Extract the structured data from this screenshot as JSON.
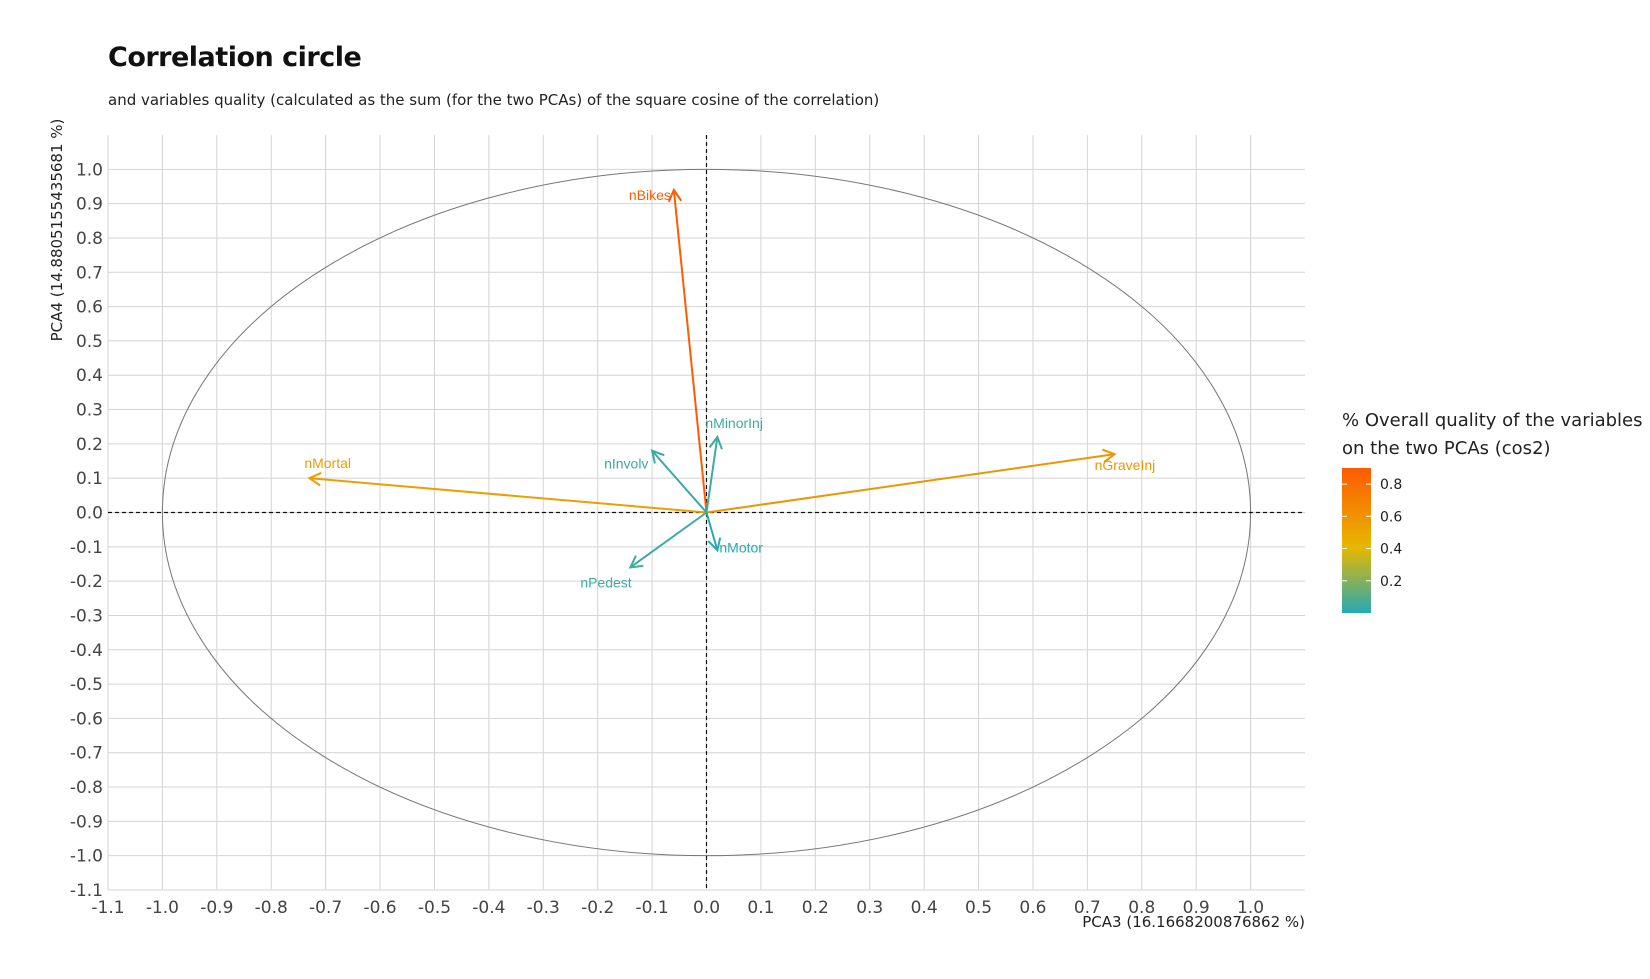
{
  "chart_data": {
    "type": "scatter",
    "subtype": "correlation-circle",
    "title": "Correlation circle",
    "subtitle": "and variables quality (calculated as the sum (for the two PCAs) of the square cosine of the correlation)",
    "xlabel": "PCA3 (16.1668200876862 %)",
    "ylabel": "PCA4 (14.8805155435681 %)",
    "xlim": [
      -1.1,
      1.1
    ],
    "ylim": [
      -1.1,
      1.1
    ],
    "x_ticks": [
      "-1.1",
      "-1.0",
      "-0.9",
      "-0.8",
      "-0.7",
      "-0.6",
      "-0.5",
      "-0.4",
      "-0.3",
      "-0.2",
      "-0.1",
      "0.0",
      "0.1",
      "0.2",
      "0.3",
      "0.4",
      "0.5",
      "0.6",
      "0.7",
      "0.8",
      "0.9",
      "1.0"
    ],
    "y_ticks": [
      "1.0",
      "0.9",
      "0.8",
      "0.7",
      "0.6",
      "0.5",
      "0.4",
      "0.3",
      "0.2",
      "0.1",
      "0.0",
      "-0.1",
      "-0.2",
      "-0.3",
      "-0.4",
      "-0.5",
      "-0.6",
      "-0.7",
      "-0.8",
      "-0.9",
      "-1.0",
      "-1.1"
    ],
    "grid": true,
    "unit_circle": true,
    "reference_lines": "dashed at x=0 and y=0",
    "variables": [
      {
        "name": "nBikes",
        "x": -0.06,
        "y": 0.94,
        "cos2": 0.89
      },
      {
        "name": "nMortal",
        "x": -0.73,
        "y": 0.1,
        "cos2": 0.54
      },
      {
        "name": "nGraveInj",
        "x": 0.75,
        "y": 0.17,
        "cos2": 0.59
      },
      {
        "name": "nMinorInj",
        "x": 0.02,
        "y": 0.22,
        "cos2": 0.05
      },
      {
        "name": "nInvolv",
        "x": -0.1,
        "y": 0.18,
        "cos2": 0.04
      },
      {
        "name": "nMotor",
        "x": 0.02,
        "y": -0.11,
        "cos2": 0.01
      },
      {
        "name": "nPedest",
        "x": -0.14,
        "y": -0.16,
        "cos2": 0.05
      }
    ],
    "legend": {
      "title_line1": "% Overall quality of the variables",
      "title_line2": "on the two PCAs (cos2)",
      "position": "right",
      "ticks": [
        "0.8",
        "0.6",
        "0.4",
        "0.2"
      ],
      "color_low": "#26a9b5",
      "color_mid": "#e6b800",
      "color_high": "#ff5a00"
    }
  }
}
